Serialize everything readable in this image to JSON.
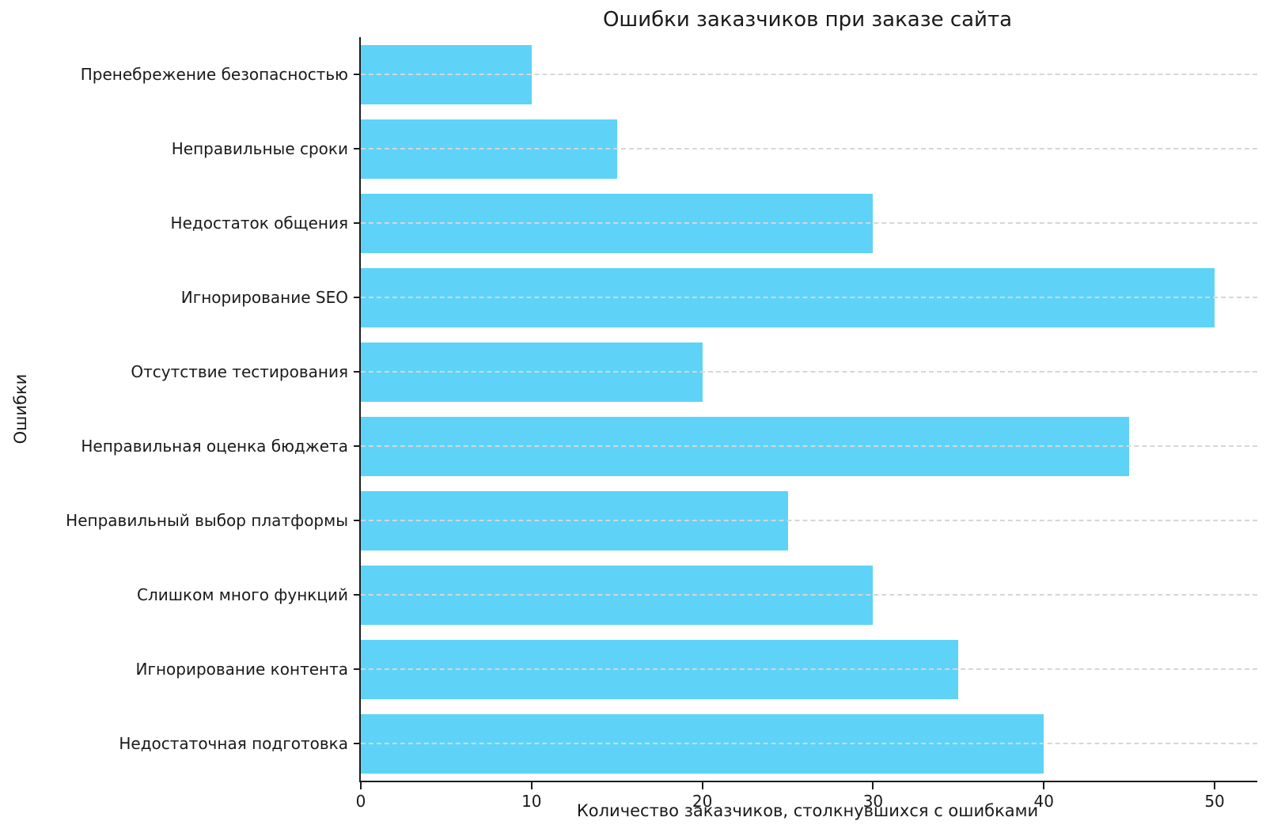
{
  "chart_data": {
    "type": "bar",
    "orientation": "horizontal",
    "title": "Ошибки заказчиков при заказе сайта",
    "xlabel": "Количество заказчиков, столкнувшихся с ошибками",
    "ylabel": "Ошибки",
    "categories": [
      "Пренебрежение безопасностью",
      "Неправильные сроки",
      "Недостаток общения",
      "Игнорирование SEO",
      "Отсутствие тестирования",
      "Неправильная оценка бюджета",
      "Неправильный выбор платформы",
      "Слишком много функций",
      "Игнорирование контента",
      "Недостаточная подготовка"
    ],
    "values": [
      10,
      15,
      30,
      50,
      20,
      45,
      25,
      30,
      35,
      40
    ],
    "xticks": [
      0,
      10,
      20,
      30,
      40,
      50
    ],
    "xlim": [
      0,
      52.5
    ],
    "bar_color": "#5ED3F7",
    "grid": "horizontal-dashed",
    "gridline_color": "#d6d6d6",
    "spine_color": "#1c1c1c",
    "legend": "none"
  }
}
